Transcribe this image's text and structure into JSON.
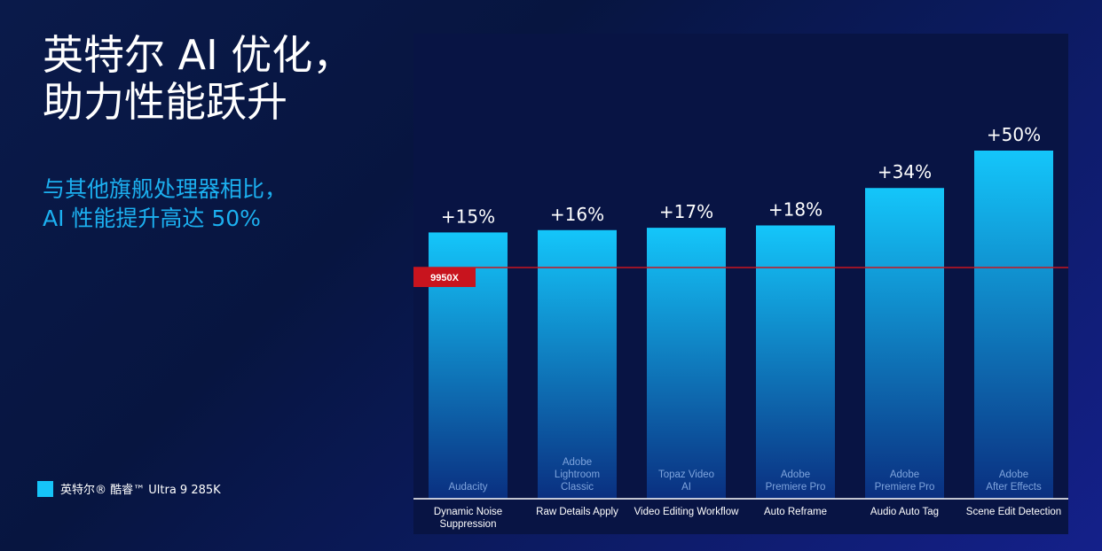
{
  "heading": {
    "line1": "英特尔 AI 优化，",
    "line2": "助力性能跃升"
  },
  "subheading": {
    "line1": "与其他旗舰处理器相比，",
    "line2": "AI 性能提升高达 50%"
  },
  "legend": {
    "label": "英特尔® 酷睿™ Ultra 9 285K",
    "color": "#16c4f8"
  },
  "chart_data": {
    "type": "bar",
    "title": "",
    "xlabel": "",
    "ylabel": "",
    "series": [
      {
        "name": "英特尔® 酷睿™ Ultra 9 285K",
        "values": [
          15,
          16,
          17,
          18,
          34,
          50
        ]
      }
    ],
    "value_labels": [
      "+15%",
      "+16%",
      "+17%",
      "+18%",
      "+34%",
      "+50%"
    ],
    "app_names": [
      [
        "Audacity"
      ],
      [
        "Adobe",
        "Lightroom",
        "Classic"
      ],
      [
        "Topaz Video",
        "AI"
      ],
      [
        "Adobe",
        "Premiere Pro"
      ],
      [
        "Adobe",
        "Premiere Pro"
      ],
      [
        "Adobe",
        "After Effects"
      ]
    ],
    "categories": [
      [
        "Dynamic Noise",
        "Suppression"
      ],
      [
        "Raw Details Apply"
      ],
      [
        "Video Editing Workflow"
      ],
      [
        "Auto Reframe"
      ],
      [
        "Audio Auto Tag"
      ],
      [
        "Scene Edit Detection"
      ]
    ],
    "baseline": {
      "label": "9950X",
      "value": 0,
      "color": "#c8141e"
    },
    "ylim": [
      -100,
      60
    ],
    "bar_color_top": "#14c6fa",
    "bar_color_bottom": "#0a2f80"
  }
}
